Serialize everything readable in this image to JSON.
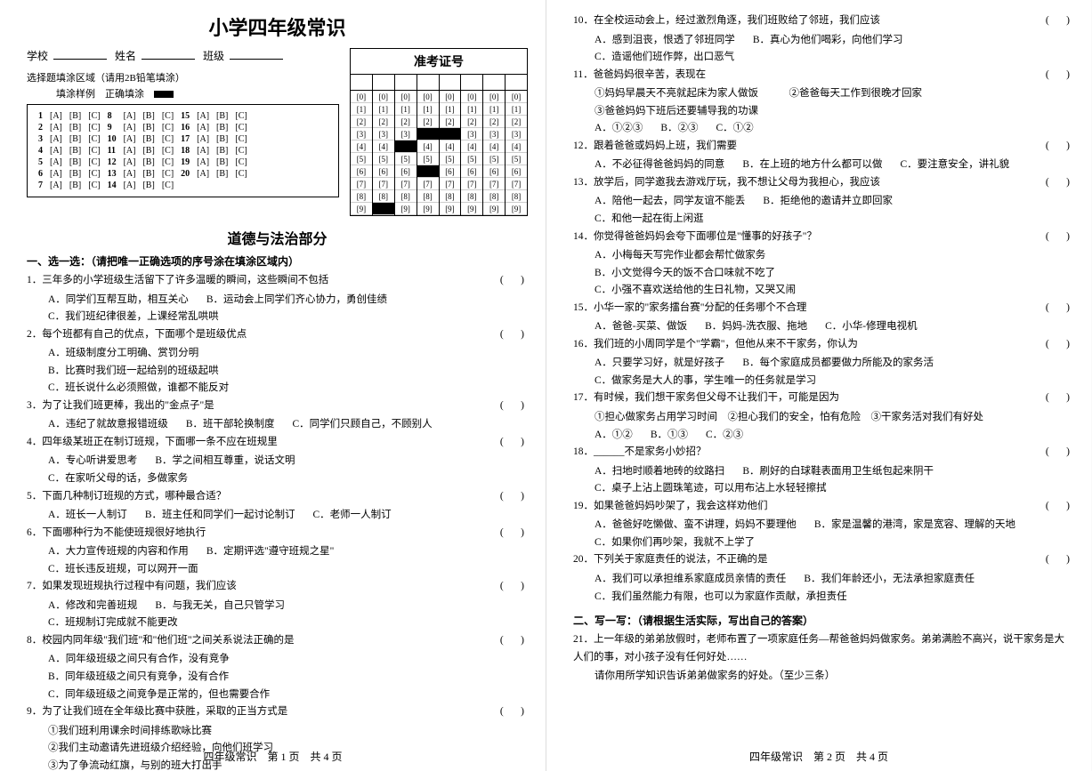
{
  "title": "小学四年级常识",
  "school_label": "学校",
  "name_label": "姓名",
  "class_label": "班级",
  "instruction1": "选择题填涂区域（请用2B铅笔填涂）",
  "instruction2_a": "填涂样例",
  "instruction2_b": "正确填涂",
  "exam_no_title": "准考证号",
  "exam_no_cols": 8,
  "exam_no_digits": [
    "0",
    "1",
    "2",
    "3",
    "4",
    "5",
    "6",
    "7",
    "8",
    "9"
  ],
  "exam_no_filled": [
    [
      3,
      3
    ],
    [
      3,
      4
    ],
    [
      4,
      2
    ],
    [
      6,
      3
    ],
    [
      9,
      1
    ]
  ],
  "answer_grid_cols": 3,
  "answer_grid_rows": 7,
  "answer_opts": [
    "[A]",
    "[B]",
    "[C]"
  ],
  "answer_nums": [
    1,
    2,
    3,
    4,
    5,
    6,
    7,
    8,
    9,
    10,
    11,
    12,
    13,
    14,
    15,
    16,
    17,
    18,
    19,
    20
  ],
  "section_title": "道德与法治部分",
  "part1_heading": "一、选一选：（请把唯一正确选项的序号涂在填涂区域内）",
  "part2_heading": "二、写一写：（请根据生活实际，写出自己的答案）",
  "footer1": "四年级常识　第 1 页　共 4 页",
  "footer2": "四年级常识　第 2 页　共 4 页",
  "questions_left": [
    {
      "n": "1．",
      "stem": "三年多的小学班级生活留下了许多温暖的瞬间，这些瞬间不包括",
      "paren": true,
      "opts": [
        [
          "A．同学们互帮互助，相互关心",
          "B．运动会上同学们齐心协力，勇创佳绩"
        ],
        [
          "C．我们班纪律很差，上课经常乱哄哄"
        ]
      ]
    },
    {
      "n": "2．",
      "stem": "每个班都有自己的优点，下面哪个是班级优点",
      "paren": true,
      "opts": [
        [
          "A．班级制度分工明确、赏罚分明"
        ],
        [
          "B．比赛时我们班一起给别的班级起哄"
        ],
        [
          "C．班长说什么必须照做，谁都不能反对"
        ]
      ]
    },
    {
      "n": "3．",
      "stem": "为了让我们班更棒，我出的\"金点子\"是",
      "paren": true,
      "opts": [
        [
          "A．违纪了就故意报错班级",
          "B．班干部轮换制度",
          "C．同学们只顾自己，不顾别人"
        ]
      ]
    },
    {
      "n": "4．",
      "stem": "四年级某班正在制订班规，下面哪一条不应在班规里",
      "paren": true,
      "opts": [
        [
          "A．专心听讲爱思考",
          "B．学之间相互尊重，说话文明"
        ],
        [
          "C．在家听父母的话，多做家务"
        ]
      ]
    },
    {
      "n": "5．",
      "stem": "下面几种制订班规的方式，哪种最合适？",
      "paren": true,
      "opts": [
        [
          "A．班长一人制订",
          "B．班主任和同学们一起讨论制订",
          "C．老师一人制订"
        ]
      ]
    },
    {
      "n": "6．",
      "stem": "下面哪种行为不能使班规很好地执行",
      "paren": true,
      "opts": [
        [
          "A．大力宣传班规的内容和作用",
          "B．定期评选\"遵守班规之星\""
        ],
        [
          "C．班长违反班规，可以网开一面"
        ]
      ]
    },
    {
      "n": "7．",
      "stem": "如果发现班规执行过程中有问题，我们应该",
      "paren": true,
      "opts": [
        [
          "A．修改和完善班规",
          "B．与我无关，自己只管学习"
        ],
        [
          "C．班规制订完成就不能更改"
        ]
      ]
    },
    {
      "n": "8．",
      "stem": "校园内同年级\"我们班\"和\"他们班\"之间关系说法正确的是",
      "paren": true,
      "opts": [
        [
          "A．同年级班级之间只有合作，没有竞争"
        ],
        [
          "B．同年级班级之间只有竞争，没有合作"
        ],
        [
          "C．同年级班级之间竞争是正常的，但也需要合作"
        ]
      ]
    },
    {
      "n": "9．",
      "stem": "为了让我们班在全年级比赛中获胜，采取的正当方式是",
      "paren": true,
      "sub": [
        "①我们班利用课余时间排练歌咏比赛",
        "②我们主动邀请先进班级介绍经验，向他们班学习",
        "③为了争流动红旗，与别的班大打出手"
      ],
      "opts": [
        [
          "A．①②",
          "B．②③",
          "C．①③"
        ]
      ]
    }
  ],
  "questions_right": [
    {
      "n": "10．",
      "stem": "在全校运动会上，经过激烈角逐，我们班败给了邻班，我们应该",
      "paren": true,
      "opts": [
        [
          "A．感到沮丧，恨透了邻班同学",
          "B．真心为他们喝彩，向他们学习"
        ],
        [
          "C．造谣他们班作弊，出口恶气"
        ]
      ]
    },
    {
      "n": "11．",
      "stem": "爸爸妈妈很辛苦，表现在",
      "paren": true,
      "sub": [
        "①妈妈早晨天不亮就起床为家人做饭　　　②爸爸每天工作到很晚才回家",
        "③爸爸妈妈下班后还要辅导我的功课"
      ],
      "opts": [
        [
          "A．①②③",
          "B．②③",
          "C．①②"
        ]
      ]
    },
    {
      "n": "12．",
      "stem": "跟着爸爸或妈妈上班，我们需要",
      "paren": true,
      "opts": [
        [
          "A．不必征得爸爸妈妈的同意",
          "B．在上班的地方什么都可以做",
          "C．要注意安全，讲礼貌"
        ]
      ]
    },
    {
      "n": "13．",
      "stem": "放学后，同学邀我去游戏厅玩，我不想让父母为我担心，我应该",
      "paren": true,
      "opts": [
        [
          "A．陪他一起去，同学友谊不能丢",
          "B．拒绝他的邀请并立即回家"
        ],
        [
          "C．和他一起在街上闲逛"
        ]
      ]
    },
    {
      "n": "14．",
      "stem": "你觉得爸爸妈妈会夸下面哪位是\"懂事的好孩子\"？",
      "paren": true,
      "opts": [
        [
          "A．小梅每天写完作业都会帮忙做家务"
        ],
        [
          "B．小文觉得今天的饭不合口味就不吃了"
        ],
        [
          "C．小强不喜欢送给他的生日礼物，又哭又闹"
        ]
      ]
    },
    {
      "n": "15．",
      "stem": "小华一家的\"家务擂台赛\"分配的任务哪个不合理",
      "paren": true,
      "opts": [
        [
          "A．爸爸-买菜、做饭",
          "B．妈妈-洗衣服、拖地",
          "C．小华-修理电视机"
        ]
      ]
    },
    {
      "n": "16．",
      "stem": "我们班的小周同学是个\"学霸\"，但他从来不干家务，你认为",
      "paren": true,
      "opts": [
        [
          "A．只要学习好，就是好孩子",
          "B．每个家庭成员都要做力所能及的家务活"
        ],
        [
          "C．做家务是大人的事，学生唯一的任务就是学习"
        ]
      ]
    },
    {
      "n": "17．",
      "stem": "有时候，我们想干家务但父母不让我们干，可能是因为",
      "paren": true,
      "sub": [
        "①担心做家务占用学习时间　②担心我们的安全，怕有危险　③干家务活对我们有好处"
      ],
      "opts": [
        [
          "A．①②",
          "B．①③",
          "C．②③"
        ]
      ]
    },
    {
      "n": "18．",
      "stem": "______不是家务小妙招？",
      "paren": true,
      "opts": [
        [
          "A．扫地时顺着地砖的纹路扫",
          "B．刷好的白球鞋表面用卫生纸包起来阴干"
        ],
        [
          "C．桌子上沾上圆珠笔迹，可以用布沾上水轻轻擦拭"
        ]
      ]
    },
    {
      "n": "19．",
      "stem": "如果爸爸妈妈吵架了，我会这样劝他们",
      "paren": true,
      "opts": [
        [
          "A．爸爸好吃懒做、蛮不讲理，妈妈不要理他",
          "B．家是温馨的港湾，家是宽容、理解的天地"
        ],
        [
          "C．如果你们再吵架，我就不上学了"
        ]
      ]
    },
    {
      "n": "20．",
      "stem": "下列关于家庭责任的说法，不正确的是",
      "paren": true,
      "opts": [
        [
          "A．我们可以承担维系家庭成员亲情的责任",
          "B．我们年龄还小，无法承担家庭责任"
        ],
        [
          "C．我们虽然能力有限，也可以为家庭作贡献，承担责任"
        ]
      ]
    }
  ],
  "q21": {
    "n": "21．",
    "stem": "上一年级的弟弟放假时，老师布置了一项家庭任务—帮爸爸妈妈做家务。弟弟满脸不高兴，说干家务是大人们的事，对小孩子没有任何好处……",
    "tail": "请你用所学知识告诉弟弟做家务的好处。（至少三条）"
  }
}
